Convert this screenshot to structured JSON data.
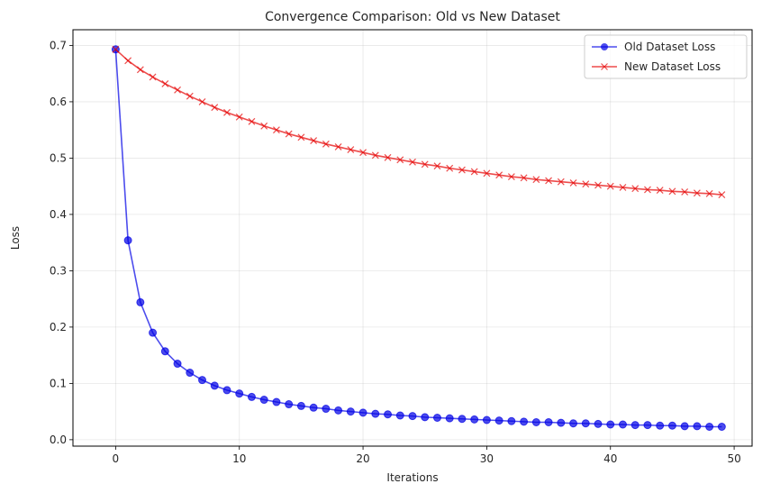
{
  "chart_data": {
    "type": "line",
    "title": "Convergence Comparison: Old vs New Dataset",
    "xlabel": "Iterations",
    "ylabel": "Loss",
    "xlim": [
      -3.45,
      51.45
    ],
    "ylim": [
      -0.0114,
      0.7279
    ],
    "xticks": [
      0,
      10,
      20,
      30,
      40,
      50
    ],
    "yticks": [
      0.0,
      0.1,
      0.2,
      0.3,
      0.4,
      0.5,
      0.6,
      0.7
    ],
    "ytick_labels": [
      "0.0",
      "0.1",
      "0.2",
      "0.3",
      "0.4",
      "0.5",
      "0.6",
      "0.7"
    ],
    "grid": true,
    "legend_position": "upper-right",
    "x": [
      0,
      1,
      2,
      3,
      4,
      5,
      6,
      7,
      8,
      9,
      10,
      11,
      12,
      13,
      14,
      15,
      16,
      17,
      18,
      19,
      20,
      21,
      22,
      23,
      24,
      25,
      26,
      27,
      28,
      29,
      30,
      31,
      32,
      33,
      34,
      35,
      36,
      37,
      38,
      39,
      40,
      41,
      42,
      43,
      44,
      45,
      46,
      47,
      48,
      49
    ],
    "series": [
      {
        "name": "Old Dataset Loss",
        "color": "#0000e6",
        "marker": "circle",
        "values": [
          0.693,
          0.354,
          0.244,
          0.19,
          0.157,
          0.135,
          0.119,
          0.106,
          0.096,
          0.088,
          0.082,
          0.076,
          0.071,
          0.067,
          0.063,
          0.06,
          0.057,
          0.055,
          0.052,
          0.05,
          0.048,
          0.046,
          0.045,
          0.043,
          0.042,
          0.04,
          0.039,
          0.038,
          0.037,
          0.036,
          0.035,
          0.034,
          0.033,
          0.032,
          0.031,
          0.031,
          0.03,
          0.029,
          0.029,
          0.028,
          0.027,
          0.027,
          0.026,
          0.026,
          0.025,
          0.025,
          0.024,
          0.024,
          0.023,
          0.023
        ]
      },
      {
        "name": "New Dataset Loss",
        "color": "#e60000",
        "marker": "x",
        "values": [
          0.693,
          0.673,
          0.657,
          0.644,
          0.632,
          0.621,
          0.61,
          0.6,
          0.59,
          0.581,
          0.573,
          0.565,
          0.557,
          0.55,
          0.543,
          0.537,
          0.531,
          0.525,
          0.52,
          0.515,
          0.51,
          0.505,
          0.501,
          0.497,
          0.493,
          0.489,
          0.486,
          0.482,
          0.479,
          0.476,
          0.473,
          0.47,
          0.467,
          0.465,
          0.462,
          0.46,
          0.458,
          0.456,
          0.454,
          0.452,
          0.45,
          0.448,
          0.446,
          0.444,
          0.443,
          0.441,
          0.44,
          0.438,
          0.437,
          0.435
        ]
      }
    ]
  }
}
